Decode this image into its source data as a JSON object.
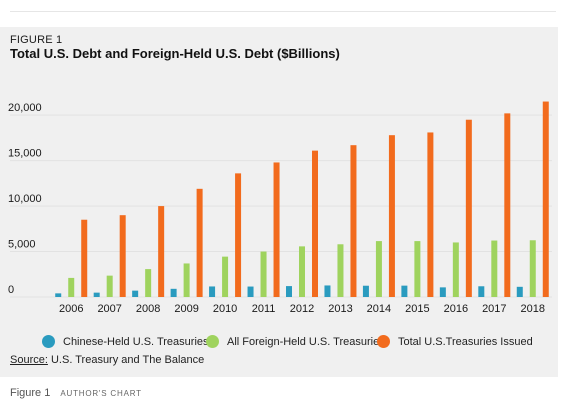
{
  "figure": {
    "label": "FIGURE 1",
    "source_label": "Source:",
    "source_text": " U.S. Treasury and The Balance"
  },
  "caption": {
    "figure": "Figure 1",
    "credit": "AUTHOR'S CHART"
  },
  "colors": {
    "panel_bg": "#f0f0f0",
    "grid": "#e2e2e2",
    "chinese": "#2a9bbf",
    "foreign": "#9fd35e",
    "total": "#f26b1d"
  },
  "chart_data": {
    "type": "bar",
    "title": "Total U.S. Debt and Foreign-Held U.S. Debt ($Billions)",
    "xlabel": "",
    "ylabel": "",
    "categories": [
      "2006",
      "2007",
      "2008",
      "2009",
      "2010",
      "2011",
      "2012",
      "2013",
      "2014",
      "2015",
      "2016",
      "2017",
      "2018"
    ],
    "ylim": [
      0,
      22000
    ],
    "yticks": [
      0,
      5000,
      10000,
      15000,
      20000
    ],
    "ytick_labels": [
      "0",
      "5,000",
      "10,000",
      "15,000",
      "20,000"
    ],
    "grid": true,
    "legend_position": "bottom",
    "series": [
      {
        "name": "Chinese-Held U.S. Treasuries",
        "color": "#2a9bbf",
        "values": [
          400,
          480,
          700,
          900,
          1160,
          1150,
          1200,
          1270,
          1240,
          1250,
          1060,
          1180,
          1120
        ]
      },
      {
        "name": "All Foreign-Held U.S. Treasuries",
        "color": "#9fd35e",
        "values": [
          2100,
          2350,
          3070,
          3690,
          4440,
          5000,
          5570,
          5800,
          6150,
          6150,
          6000,
          6210,
          6240
        ]
      },
      {
        "name": "Total U.S.Treasuries Issued",
        "color": "#f26b1d",
        "values": [
          8500,
          9000,
          10000,
          11900,
          13600,
          14800,
          16100,
          16700,
          17800,
          18100,
          19500,
          20200,
          21500
        ]
      }
    ]
  }
}
